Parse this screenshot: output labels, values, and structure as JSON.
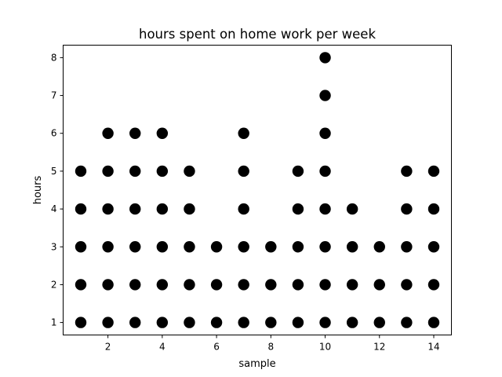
{
  "chart_data": {
    "type": "scatter",
    "title": "hours spent on home work per week",
    "xlabel": "sample",
    "ylabel": "hours",
    "xlim": [
      0.35,
      14.65
    ],
    "ylim": [
      0.67,
      8.33
    ],
    "xticks": [
      2,
      4,
      6,
      8,
      10,
      12,
      14
    ],
    "yticks": [
      1,
      2,
      3,
      4,
      5,
      6,
      7,
      8
    ],
    "grid": false,
    "marker_color": "#000000",
    "points": [
      [
        1,
        1
      ],
      [
        1,
        2
      ],
      [
        1,
        3
      ],
      [
        1,
        4
      ],
      [
        1,
        5
      ],
      [
        2,
        1
      ],
      [
        2,
        2
      ],
      [
        2,
        3
      ],
      [
        2,
        4
      ],
      [
        2,
        5
      ],
      [
        2,
        6
      ],
      [
        3,
        1
      ],
      [
        3,
        2
      ],
      [
        3,
        3
      ],
      [
        3,
        4
      ],
      [
        3,
        5
      ],
      [
        3,
        6
      ],
      [
        4,
        1
      ],
      [
        4,
        2
      ],
      [
        4,
        3
      ],
      [
        4,
        4
      ],
      [
        4,
        5
      ],
      [
        4,
        6
      ],
      [
        5,
        1
      ],
      [
        5,
        2
      ],
      [
        5,
        3
      ],
      [
        5,
        4
      ],
      [
        5,
        5
      ],
      [
        6,
        1
      ],
      [
        6,
        2
      ],
      [
        6,
        3
      ],
      [
        7,
        1
      ],
      [
        7,
        2
      ],
      [
        7,
        3
      ],
      [
        7,
        4
      ],
      [
        7,
        5
      ],
      [
        7,
        6
      ],
      [
        8,
        1
      ],
      [
        8,
        2
      ],
      [
        8,
        3
      ],
      [
        9,
        1
      ],
      [
        9,
        2
      ],
      [
        9,
        3
      ],
      [
        9,
        4
      ],
      [
        9,
        5
      ],
      [
        10,
        1
      ],
      [
        10,
        2
      ],
      [
        10,
        3
      ],
      [
        10,
        4
      ],
      [
        10,
        5
      ],
      [
        10,
        6
      ],
      [
        10,
        7
      ],
      [
        10,
        8
      ],
      [
        11,
        1
      ],
      [
        11,
        2
      ],
      [
        11,
        3
      ],
      [
        11,
        4
      ],
      [
        12,
        1
      ],
      [
        12,
        2
      ],
      [
        12,
        3
      ],
      [
        13,
        1
      ],
      [
        13,
        2
      ],
      [
        13,
        3
      ],
      [
        13,
        4
      ],
      [
        13,
        5
      ],
      [
        14,
        1
      ],
      [
        14,
        2
      ],
      [
        14,
        3
      ],
      [
        14,
        4
      ],
      [
        14,
        5
      ]
    ]
  }
}
